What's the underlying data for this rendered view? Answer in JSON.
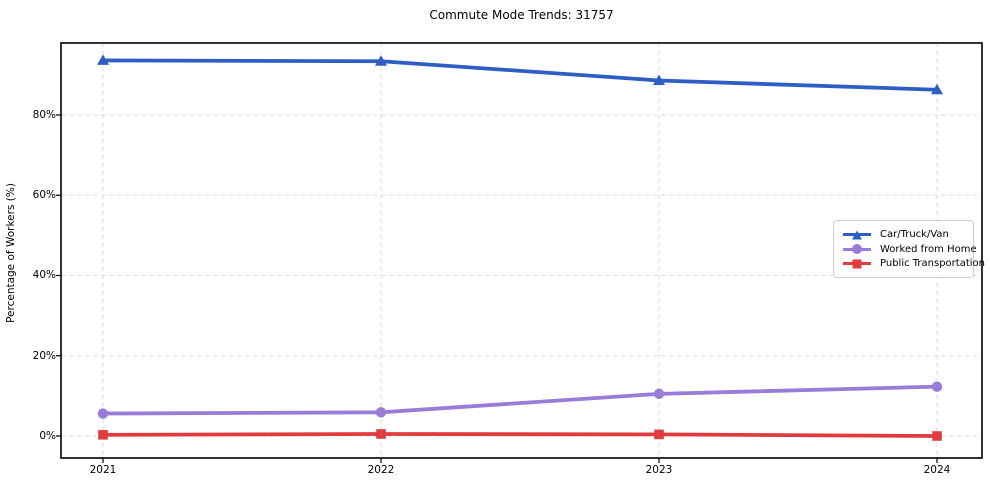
{
  "title": "Commute Mode Trends: 31757",
  "chart_data": {
    "type": "line",
    "title": "Commute Mode Trends: 31757",
    "xlabel": "",
    "ylabel": "Percentage of Workers (%)",
    "categories": [
      "2021",
      "2022",
      "2023",
      "2024"
    ],
    "ytick_labels": [
      "0%",
      "20%",
      "40%",
      "60%",
      "80%"
    ],
    "ytick_values": [
      0,
      20,
      40,
      60,
      80
    ],
    "ylim": [
      -5.5,
      98.3
    ],
    "grid": true,
    "grid_style": "dashed",
    "legend_position": "center-right",
    "series": [
      {
        "name": "Car/Truck/Van",
        "marker": "triangle",
        "color": "#2e5ec4",
        "values": [
          93.6,
          93.4,
          88.6,
          86.3
        ]
      },
      {
        "name": "Worked from Home",
        "marker": "circle",
        "color": "#9b7bd8",
        "values": [
          5.6,
          5.9,
          10.5,
          12.3
        ]
      },
      {
        "name": "Public Transportation",
        "marker": "square",
        "color": "#e03b3e",
        "values": [
          0.3,
          0.5,
          0.4,
          0.0
        ]
      }
    ],
    "colors": {
      "axis": "#000000",
      "grid": "#d9d9d9",
      "background": "#ffffff"
    }
  }
}
